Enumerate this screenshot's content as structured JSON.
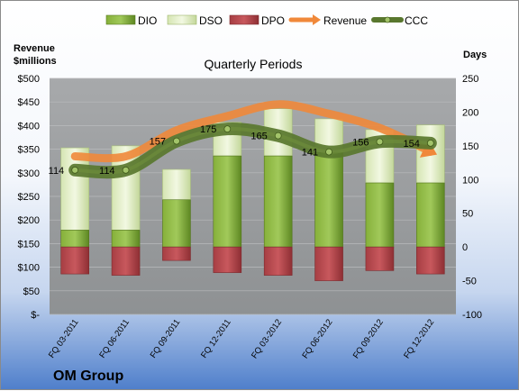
{
  "chart_data": {
    "type": "bar",
    "title": "Quarterly Periods",
    "company": "OM Group",
    "y_left_label": [
      "Revenue",
      "$millions"
    ],
    "y_right_label": "Days",
    "y_left_ticks": [
      "$500",
      "$450",
      "$400",
      "$350",
      "$300",
      "$250",
      "$200",
      "$150",
      "$100",
      "$50",
      "$-"
    ],
    "y_right_ticks": [
      "250",
      "200",
      "150",
      "100",
      "50",
      "0",
      "-50",
      "-100"
    ],
    "ylim_left": [
      0,
      500
    ],
    "ylim_right": [
      -100,
      250
    ],
    "categories": [
      "FQ 03-2011",
      "FQ 06-2011",
      "FQ 09-2011",
      "FQ 12-2011",
      "FQ 03-2012",
      "FQ 06-2012",
      "FQ 09-2012",
      "FQ 12-2012"
    ],
    "legend": [
      "DIO",
      "DSO",
      "DPO",
      "Revenue",
      "CCC"
    ],
    "series": [
      {
        "name": "DIO",
        "axis": "right",
        "values": [
          25,
          25,
          70,
          135,
          135,
          140,
          95,
          95
        ]
      },
      {
        "name": "DSO",
        "axis": "right",
        "values": [
          122,
          125,
          45,
          50,
          70,
          50,
          79,
          86
        ]
      },
      {
        "name": "DPO",
        "axis": "right",
        "values": [
          -40,
          -42,
          -20,
          -38,
          -42,
          -50,
          -35,
          -40
        ]
      },
      {
        "name": "Revenue",
        "axis": "left",
        "values": [
          335,
          335,
          390,
          420,
          445,
          425,
          395,
          345
        ]
      },
      {
        "name": "CCC",
        "axis": "right",
        "values": [
          114,
          114,
          157,
          175,
          165,
          141,
          156,
          154
        ]
      }
    ],
    "ccc_labels": [
      "114",
      "114",
      "157",
      "175",
      "165",
      "141",
      "156",
      "154"
    ],
    "colors": {
      "dio": "#6f9a2b",
      "dso": "#dce9bd",
      "dpo": "#b4474c",
      "revenue": "#f0883a",
      "ccc": "#59772e",
      "plot_bg": "#9ea0a2"
    }
  }
}
